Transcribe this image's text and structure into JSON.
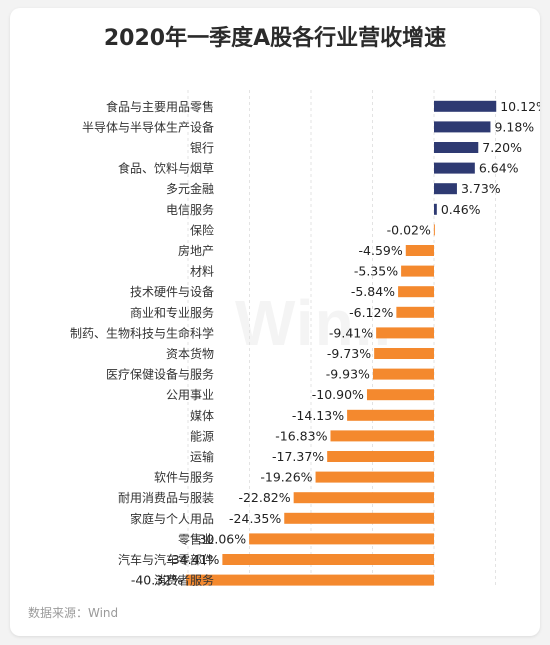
{
  "chart_data": {
    "type": "bar",
    "orientation": "horizontal",
    "title": "2020年一季度A股各行业营收增速",
    "source": "数据来源：Wind",
    "watermark": "Win..",
    "unit": "%",
    "grid": "vertical dashed",
    "colors": {
      "positive": "#2e3a72",
      "negative": "#f4892e"
    },
    "categories": [
      "食品与主要用品零售",
      "半导体与半导体生产设备",
      "银行",
      "食品、饮料与烟草",
      "多元金融",
      "电信服务",
      "保险",
      "房地产",
      "材料",
      "技术硬件与设备",
      "商业和专业服务",
      "制药、生物科技与生命科学",
      "资本货物",
      "医疗保健设备与服务",
      "公用事业",
      "媒体",
      "能源",
      "运输",
      "软件与服务",
      "耐用消费品与服装",
      "家庭与个人用品",
      "零售业",
      "汽车与汽车零部件",
      "消费者服务"
    ],
    "values": [
      10.12,
      9.18,
      7.2,
      6.64,
      3.73,
      0.46,
      -0.02,
      -4.59,
      -5.35,
      -5.84,
      -6.12,
      -9.41,
      -9.73,
      -9.93,
      -10.9,
      -14.13,
      -16.83,
      -17.37,
      -19.26,
      -22.82,
      -24.35,
      -30.06,
      -34.41,
      -40.32
    ],
    "value_labels": [
      "10.12%",
      "9.18%",
      "7.20%",
      "6.64%",
      "3.73%",
      "0.46%",
      "-0.02%",
      "-4.59%",
      "-5.35%",
      "-5.84%",
      "-6.12%",
      "-9.41%",
      "-9.73%",
      "-9.93%",
      "-10.90%",
      "-14.13%",
      "-16.83%",
      "-17.37%",
      "-19.26%",
      "-22.82%",
      "-24.35%",
      "-30.06%",
      "-34.41%",
      "-40.32%"
    ]
  }
}
